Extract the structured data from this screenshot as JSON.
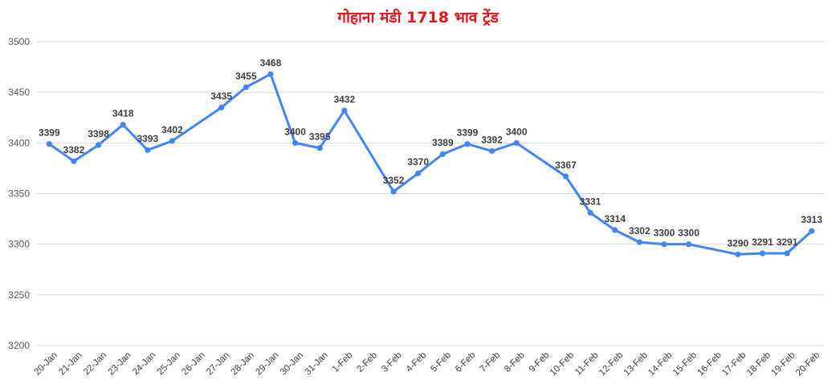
{
  "chart_data": {
    "type": "line",
    "title": "गोहाना मंडी 1718 भाव ट्रेंड",
    "xlabel": "",
    "ylabel": "",
    "ylim": [
      3200,
      3500
    ],
    "yticks": [
      3200,
      3250,
      3300,
      3350,
      3400,
      3450,
      3500
    ],
    "grid": true,
    "legend": "none",
    "line_color": "#4285f4",
    "categories": [
      "20-Jan",
      "21-Jan",
      "22-Jan",
      "23-Jan",
      "24-Jan",
      "25-Jan",
      "26-Jan",
      "27-Jan",
      "28-Jan",
      "29-Jan",
      "30-Jan",
      "31-Jan",
      "1-Feb",
      "2-Feb",
      "3-Feb",
      "4-Feb",
      "5-Feb",
      "6-Feb",
      "7-Feb",
      "8-Feb",
      "9-Feb",
      "10-Feb",
      "11-Feb",
      "12-Feb",
      "13-Feb",
      "14-Feb",
      "15-Feb",
      "16-Feb",
      "17-Feb",
      "18-Feb",
      "19-Feb",
      "20-Feb"
    ],
    "series": [
      {
        "values": [
          3399,
          3382,
          3398,
          3418,
          3393,
          3402,
          null,
          3435,
          3455,
          3468,
          3400,
          3395,
          3432,
          null,
          3352,
          3370,
          3389,
          3399,
          3392,
          3400,
          null,
          3367,
          3331,
          3314,
          3302,
          3300,
          3300,
          null,
          3290,
          3291,
          3291,
          3313
        ]
      }
    ]
  }
}
